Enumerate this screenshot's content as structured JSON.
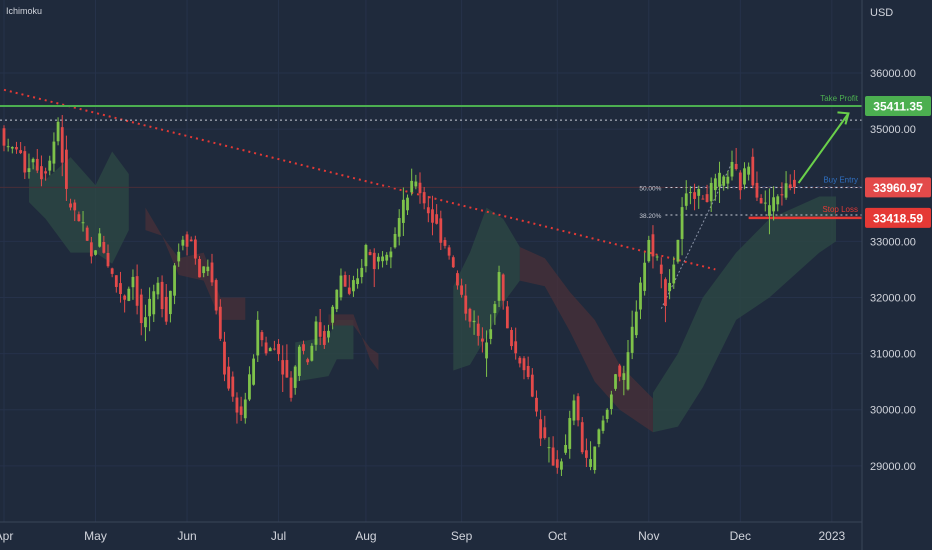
{
  "indicator": "Ichimoku",
  "currency": "USD",
  "colors": {
    "background": "#1f2a3c",
    "up": "#7ec24a",
    "down": "#e34a4a",
    "take_profit": "#4caf50",
    "stop_loss": "#e53935",
    "buy_entry": "#2f6fbf",
    "trendline": "#e53935",
    "arrow": "#6ad04a",
    "cloud_green": "#2e4a44",
    "cloud_red": "#4a3038"
  },
  "chart_data": {
    "type": "candlestick",
    "ylim": [
      28000,
      37300
    ],
    "y_ticks": [
      {
        "value": 36000,
        "label": "36000.00"
      },
      {
        "value": 35000,
        "label": "35000.00"
      },
      {
        "value": 33000,
        "label": "33000.00"
      },
      {
        "value": 32000,
        "label": "32000.00"
      },
      {
        "value": 31000,
        "label": "31000.00"
      },
      {
        "value": 30000,
        "label": "30000.00"
      },
      {
        "value": 29000,
        "label": "29000.00"
      }
    ],
    "x_ticks": [
      {
        "label": "Apr",
        "index": 0
      },
      {
        "label": "May",
        "index": 22
      },
      {
        "label": "Jun",
        "index": 44
      },
      {
        "label": "Jul",
        "index": 66
      },
      {
        "label": "Aug",
        "index": 87
      },
      {
        "label": "Sep",
        "index": 110
      },
      {
        "label": "Oct",
        "index": 133
      },
      {
        "label": "Nov",
        "index": 155
      },
      {
        "label": "Dec",
        "index": 177
      },
      {
        "label": "2023",
        "index": 199
      }
    ],
    "levels": {
      "take_profit": {
        "value": 35411.35,
        "label": "35411.35",
        "text": "Take Profit"
      },
      "buy_entry": {
        "value": 33960.97,
        "label": "33960.97",
        "text": "Buy Entry"
      },
      "stop_loss": {
        "value": 33418.59,
        "label": "33418.59",
        "text": "Stop Loss"
      },
      "dotted_high": {
        "value": 35160
      }
    },
    "fib": [
      {
        "label": "50.00%",
        "value": 33960
      },
      {
        "label": "38.20%",
        "value": 33470
      }
    ],
    "trendline": {
      "start": {
        "index": 0,
        "value": 35700
      },
      "end": {
        "index": 171,
        "value": 32500
      }
    },
    "arrow": {
      "start": {
        "index": 191,
        "value": 34040
      },
      "end": {
        "index": 203,
        "value": 35280
      }
    },
    "path": [
      [
        0,
        35000
      ],
      [
        2,
        34600
      ],
      [
        4,
        34700
      ],
      [
        6,
        34300
      ],
      [
        8,
        34500
      ],
      [
        10,
        34200
      ],
      [
        12,
        34450
      ],
      [
        14,
        35150
      ],
      [
        16,
        33800
      ],
      [
        18,
        33500
      ],
      [
        20,
        33200
      ],
      [
        22,
        32700
      ],
      [
        24,
        33100
      ],
      [
        26,
        32600
      ],
      [
        28,
        32200
      ],
      [
        30,
        32000
      ],
      [
        32,
        32400
      ],
      [
        34,
        31500
      ],
      [
        36,
        31800
      ],
      [
        38,
        32200
      ],
      [
        40,
        31700
      ],
      [
        42,
        32600
      ],
      [
        44,
        33100
      ],
      [
        46,
        33000
      ],
      [
        48,
        32400
      ],
      [
        50,
        32600
      ],
      [
        52,
        31800
      ],
      [
        54,
        30700
      ],
      [
        56,
        30200
      ],
      [
        58,
        29900
      ],
      [
        60,
        30500
      ],
      [
        62,
        31500
      ],
      [
        64,
        31000
      ],
      [
        66,
        31200
      ],
      [
        68,
        30800
      ],
      [
        70,
        30300
      ],
      [
        72,
        31200
      ],
      [
        74,
        30900
      ],
      [
        76,
        31500
      ],
      [
        78,
        31200
      ],
      [
        80,
        31800
      ],
      [
        82,
        32400
      ],
      [
        84,
        32000
      ],
      [
        86,
        32300
      ],
      [
        88,
        32900
      ],
      [
        90,
        32600
      ],
      [
        92,
        32800
      ],
      [
        94,
        33000
      ],
      [
        96,
        33400
      ],
      [
        98,
        33800
      ],
      [
        100,
        34100
      ],
      [
        102,
        33700
      ],
      [
        104,
        33400
      ],
      [
        106,
        33100
      ],
      [
        108,
        32800
      ],
      [
        110,
        32200
      ],
      [
        112,
        31800
      ],
      [
        114,
        31500
      ],
      [
        116,
        31100
      ],
      [
        118,
        31600
      ],
      [
        120,
        32400
      ],
      [
        122,
        31400
      ],
      [
        124,
        31000
      ],
      [
        126,
        30800
      ],
      [
        128,
        30300
      ],
      [
        130,
        29600
      ],
      [
        132,
        29200
      ],
      [
        134,
        29000
      ],
      [
        136,
        29300
      ],
      [
        138,
        30200
      ],
      [
        140,
        29300
      ],
      [
        142,
        29000
      ],
      [
        144,
        29600
      ],
      [
        146,
        30000
      ],
      [
        148,
        30700
      ],
      [
        150,
        30500
      ],
      [
        152,
        31400
      ],
      [
        154,
        32300
      ],
      [
        156,
        33000
      ],
      [
        158,
        32700
      ],
      [
        160,
        32000
      ],
      [
        162,
        32600
      ],
      [
        164,
        33500
      ],
      [
        166,
        34000
      ],
      [
        168,
        33800
      ],
      [
        170,
        33800
      ],
      [
        172,
        34000
      ],
      [
        174,
        34100
      ],
      [
        176,
        34300
      ],
      [
        178,
        34000
      ],
      [
        180,
        34400
      ],
      [
        182,
        33900
      ],
      [
        184,
        33600
      ],
      [
        186,
        33700
      ],
      [
        188,
        33900
      ],
      [
        190,
        34000
      ]
    ],
    "cloud": [
      {
        "color": "cloud_green",
        "upper": [
          [
            6,
            34500
          ],
          [
            10,
            34100
          ],
          [
            16,
            34500
          ],
          [
            22,
            34000
          ],
          [
            26,
            34600
          ],
          [
            30,
            34200
          ],
          [
            30,
            33200
          ]
        ],
        "lower": [
          [
            6,
            33700
          ],
          [
            10,
            33400
          ],
          [
            16,
            32800
          ],
          [
            22,
            32800
          ],
          [
            26,
            32600
          ],
          [
            30,
            33200
          ]
        ]
      },
      {
        "color": "cloud_red",
        "upper": [
          [
            34,
            33200
          ],
          [
            38,
            33100
          ],
          [
            42,
            32400
          ],
          [
            48,
            32300
          ],
          [
            52,
            31600
          ],
          [
            58,
            31600
          ]
        ],
        "lower": [
          [
            34,
            33600
          ],
          [
            38,
            33100
          ],
          [
            42,
            32700
          ],
          [
            48,
            32800
          ],
          [
            52,
            32000
          ],
          [
            58,
            32000
          ]
        ]
      },
      {
        "color": "cloud_green",
        "upper": [
          [
            70,
            31200
          ],
          [
            78,
            31300
          ],
          [
            80,
            31600
          ],
          [
            84,
            31600
          ]
        ],
        "lower": [
          [
            70,
            30500
          ],
          [
            78,
            30600
          ],
          [
            80,
            30900
          ],
          [
            84,
            30900
          ]
        ]
      },
      {
        "color": "cloud_red",
        "upper": [
          [
            78,
            31500
          ],
          [
            84,
            31500
          ],
          [
            88,
            31100
          ],
          [
            90,
            31000
          ]
        ],
        "lower": [
          [
            78,
            31700
          ],
          [
            84,
            31700
          ],
          [
            88,
            30900
          ],
          [
            90,
            30700
          ]
        ]
      },
      {
        "color": "cloud_green",
        "upper": [
          [
            108,
            32200
          ],
          [
            112,
            32800
          ],
          [
            116,
            33600
          ],
          [
            120,
            33400
          ],
          [
            124,
            32900
          ]
        ],
        "lower": [
          [
            108,
            30700
          ],
          [
            112,
            30800
          ],
          [
            116,
            31300
          ],
          [
            120,
            31900
          ],
          [
            124,
            32300
          ]
        ]
      },
      {
        "color": "cloud_red",
        "upper": [
          [
            124,
            32900
          ],
          [
            130,
            32700
          ],
          [
            136,
            32100
          ],
          [
            142,
            31600
          ],
          [
            148,
            30800
          ],
          [
            156,
            30200
          ]
        ],
        "lower": [
          [
            124,
            32300
          ],
          [
            130,
            32200
          ],
          [
            136,
            31400
          ],
          [
            142,
            30500
          ],
          [
            148,
            30000
          ],
          [
            156,
            29600
          ]
        ]
      },
      {
        "color": "cloud_green",
        "upper": [
          [
            156,
            30300
          ],
          [
            162,
            31000
          ],
          [
            168,
            32000
          ],
          [
            176,
            32800
          ],
          [
            184,
            33400
          ],
          [
            196,
            33800
          ],
          [
            200,
            33800
          ]
        ],
        "lower": [
          [
            156,
            29600
          ],
          [
            162,
            29700
          ],
          [
            168,
            30400
          ],
          [
            176,
            31600
          ],
          [
            184,
            32000
          ],
          [
            196,
            32800
          ],
          [
            200,
            33000
          ]
        ]
      }
    ]
  }
}
